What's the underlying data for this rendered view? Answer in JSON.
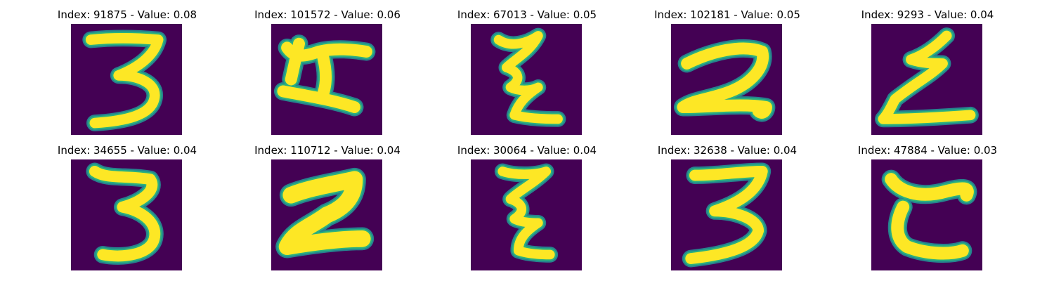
{
  "panels": [
    {
      "title": "Index: 91875 - Value: 0.08",
      "glyph": "three-a"
    },
    {
      "title": "Index: 101572 - Value: 0.06",
      "glyph": "h-shape"
    },
    {
      "title": "Index: 67013 - Value: 0.05",
      "glyph": "z-squiggle"
    },
    {
      "title": "Index: 102181 - Value: 0.05",
      "glyph": "two-a"
    },
    {
      "title": "Index: 9293 - Value: 0.04",
      "glyph": "z-sharp"
    },
    {
      "title": "Index: 34655 - Value: 0.04",
      "glyph": "three-b"
    },
    {
      "title": "Index: 110712 - Value: 0.04",
      "glyph": "two-bold"
    },
    {
      "title": "Index: 30064 - Value: 0.04",
      "glyph": "z-squiggle-b"
    },
    {
      "title": "Index: 32638 - Value: 0.04",
      "glyph": "three-c"
    },
    {
      "title": "Index: 47884 - Value: 0.03",
      "glyph": "c-shape"
    }
  ],
  "colors": {
    "background": "#440154",
    "stroke_core": "#fde725",
    "stroke_edge": "#2ab07f",
    "stroke_halo": "#26828e"
  }
}
